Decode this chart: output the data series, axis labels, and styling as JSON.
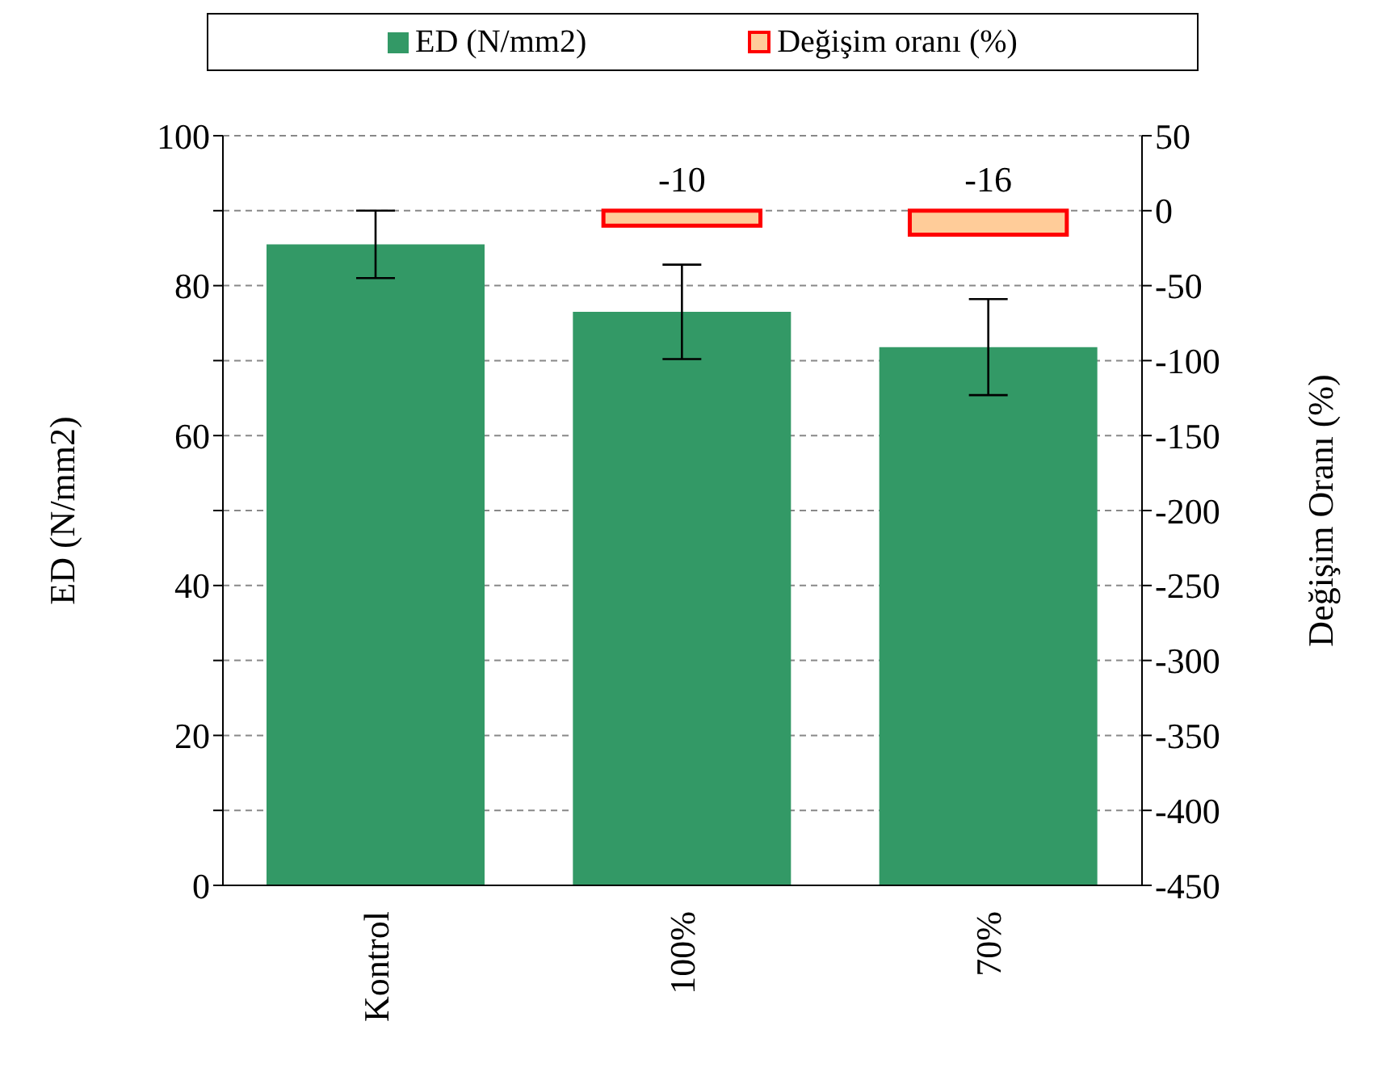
{
  "chart_data": {
    "type": "bar",
    "ylabel": "ED (N/mm2)",
    "y2label": "Değişim Oranı (%)",
    "categories": [
      "Kontrol",
      "100%",
      "70%"
    ],
    "series": [
      {
        "name": "ED (N/mm2)",
        "color": "#339966",
        "values": [
          85.5,
          76.5,
          71.8
        ],
        "errors": [
          4.5,
          6.3,
          6.4
        ]
      },
      {
        "name": "Değişim oranı (%)",
        "axis": "y2",
        "color": "#ffcc99",
        "values": [
          null,
          -10,
          -16
        ],
        "data_labels": true
      }
    ],
    "ylim": [
      0,
      100
    ],
    "yticks": [
      0,
      {
        "value": 10,
        "label": null
      },
      20,
      {
        "value": 30,
        "label": null
      },
      40,
      {
        "value": 50,
        "label": null
      },
      60,
      {
        "value": 70,
        "label": null
      },
      80,
      {
        "value": 90,
        "label": null
      },
      100
    ],
    "y2lim": [
      -450,
      50
    ],
    "y2ticks": [
      -450,
      -400,
      -350,
      -300,
      -250,
      -200,
      -150,
      -100,
      -50,
      0,
      50
    ],
    "grid": "y",
    "legend": "top"
  }
}
